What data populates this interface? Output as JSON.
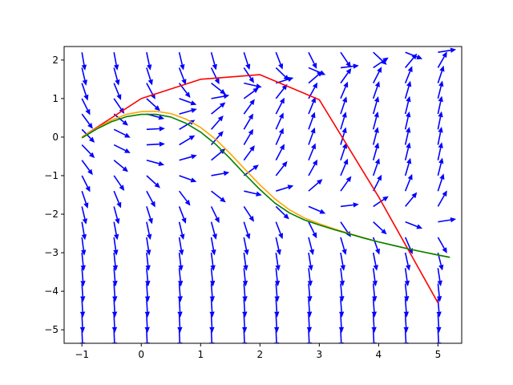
{
  "chart_data": {
    "type": "line",
    "title": "",
    "xlabel": "",
    "ylabel": "",
    "xlim": [
      -1.3,
      5.4
    ],
    "ylim": [
      -5.35,
      2.35
    ],
    "xticks": [
      -1,
      0,
      1,
      2,
      3,
      4,
      5
    ],
    "yticks": [
      -5,
      -4,
      -3,
      -2,
      -1,
      0,
      1,
      2
    ],
    "xtick_labels": [
      "−1",
      "0",
      "1",
      "2",
      "3",
      "4",
      "5"
    ],
    "ytick_labels": [
      "−5",
      "−4",
      "−3",
      "−2",
      "−1",
      "0",
      "1",
      "2"
    ],
    "grid": false,
    "legend": "none",
    "quiver": {
      "color": "#0000ff",
      "x_grid": [
        -1.0,
        -0.46,
        0.09,
        0.64,
        1.18,
        1.73,
        2.27,
        2.82,
        3.36,
        3.91,
        4.45,
        5.0
      ],
      "y_grid": [
        -5.0,
        -4.6,
        -4.2,
        -3.8,
        -3.4,
        -3.0,
        -2.6,
        -2.2,
        -1.8,
        -1.4,
        -1.0,
        -0.6,
        -0.2,
        0.2,
        0.6,
        1.0,
        1.4,
        1.8,
        2.2
      ],
      "field": "dy/dx = x - y^2 (unit-length arrows)"
    },
    "series": [
      {
        "color": "#ff0000",
        "x": [
          -1,
          0,
          1,
          2,
          3,
          4,
          5
        ],
        "y": [
          0,
          1,
          1.5,
          1.62,
          0.97,
          -1.55,
          -4.3
        ]
      },
      {
        "color": "#ffa500",
        "x": [
          -1.0,
          -0.75,
          -0.5,
          -0.25,
          0.0,
          0.25,
          0.5,
          0.75,
          1.0,
          1.25,
          1.5,
          1.75,
          2.0,
          2.25,
          2.5,
          2.75,
          3.0,
          3.25,
          3.5,
          3.75,
          4.0,
          4.25,
          4.5,
          4.75,
          5.0,
          5.2
        ],
        "y": [
          0.0,
          0.23,
          0.44,
          0.59,
          0.66,
          0.67,
          0.61,
          0.47,
          0.25,
          -0.05,
          -0.43,
          -0.84,
          -1.24,
          -1.6,
          -1.89,
          -2.1,
          -2.25,
          -2.38,
          -2.5,
          -2.61,
          -2.72,
          -2.81,
          -2.9,
          -2.98,
          -3.06,
          -3.12
        ]
      },
      {
        "color": "#008000",
        "x": [
          -1.0,
          -0.75,
          -0.5,
          -0.25,
          0.0,
          0.25,
          0.5,
          0.75,
          1.0,
          1.25,
          1.5,
          1.75,
          2.0,
          2.25,
          2.5,
          2.75,
          3.0,
          3.25,
          3.5,
          3.75,
          4.0,
          4.25,
          4.5,
          4.75,
          5.0,
          5.2
        ],
        "y": [
          -0.02,
          0.21,
          0.4,
          0.53,
          0.59,
          0.59,
          0.52,
          0.36,
          0.13,
          -0.18,
          -0.56,
          -0.97,
          -1.36,
          -1.71,
          -1.97,
          -2.15,
          -2.28,
          -2.4,
          -2.51,
          -2.62,
          -2.72,
          -2.81,
          -2.9,
          -2.98,
          -3.06,
          -3.12
        ]
      }
    ]
  }
}
